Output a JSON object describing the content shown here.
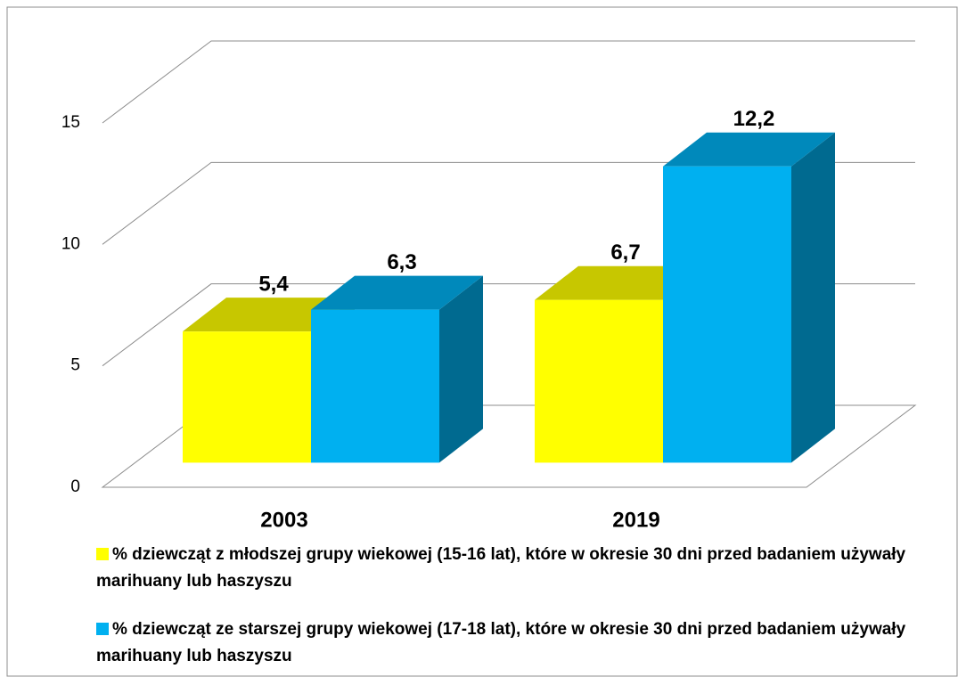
{
  "chart_data": {
    "type": "bar3d",
    "categories": [
      "2003",
      "2019"
    ],
    "series": [
      {
        "name": "% dziewcząt z młodszej grupy wiekowej (15-16 lat), które w okresie 30 dni przed badaniem używały marihuany lub haszyszu",
        "color": "#ffff00",
        "values": [
          5.4,
          6.7
        ],
        "value_labels": [
          "5,4",
          "6,7"
        ]
      },
      {
        "name": "% dziewcząt ze starszej grupy wiekowej (17-18 lat), które w okresie 30 dni przed badaniem używały marihuany lub haszyszu",
        "color": "#00b0f0",
        "values": [
          6.3,
          12.2
        ],
        "value_labels": [
          "6,3",
          "12,2"
        ]
      }
    ],
    "ylim": [
      0,
      15
    ],
    "yticks": [
      0,
      5,
      10,
      15
    ],
    "grid": true,
    "legend": "bottom"
  }
}
